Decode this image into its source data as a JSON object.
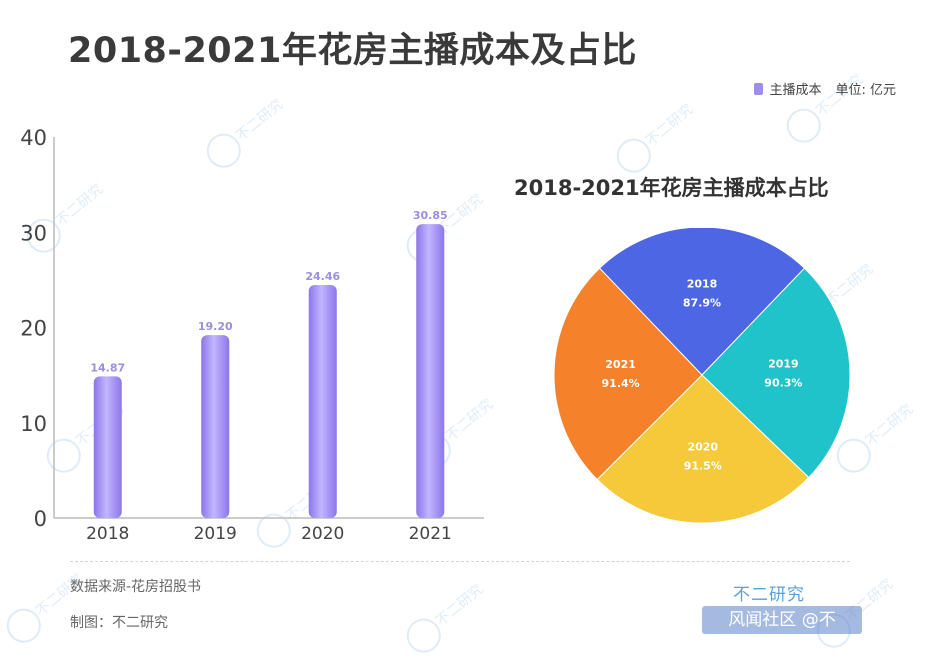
{
  "header": {
    "title": "2018-2021年花房主播成本及占比"
  },
  "legend": {
    "series_label": "主播成本",
    "unit": "单位: 亿元"
  },
  "colors": {
    "bar": "#9f8cf0",
    "bar_label": "#9a8fe0",
    "axis": "#bbbbbb",
    "pie_2018": "#4d67e4",
    "pie_2019": "#1fc3c9",
    "pie_2020": "#f5c93a",
    "pie_2021": "#f5812a"
  },
  "chart_data": [
    {
      "type": "bar",
      "categories": [
        "2018",
        "2019",
        "2020",
        "2021"
      ],
      "values": [
        14.87,
        19.2,
        24.46,
        30.85
      ],
      "value_labels": [
        "14.87",
        "19.20",
        "24.46",
        "30.85"
      ],
      "ylim": [
        0,
        40
      ],
      "yticks": [
        "0",
        "10",
        "20",
        "30",
        "40"
      ],
      "series": [
        {
          "name": "主播成本",
          "values": [
            14.87,
            19.2,
            24.46,
            30.85
          ]
        }
      ],
      "legend": "top-right",
      "grid": false
    },
    {
      "type": "pie",
      "title": "2018-2021年花房主播成本占比",
      "slices": [
        {
          "label": "2018",
          "value": 87.9,
          "text": "87.9%"
        },
        {
          "label": "2019",
          "value": 90.3,
          "text": "90.3%"
        },
        {
          "label": "2020",
          "value": 91.5,
          "text": "91.5%"
        },
        {
          "label": "2021",
          "value": 91.4,
          "text": "91.4%"
        }
      ]
    }
  ],
  "footer": {
    "source": "数据来源-花房招股书",
    "maker": "制图：不二研究",
    "brand": "不二研究",
    "badge": "风闻社区 @不"
  },
  "watermark": {
    "text": "不二研究"
  }
}
